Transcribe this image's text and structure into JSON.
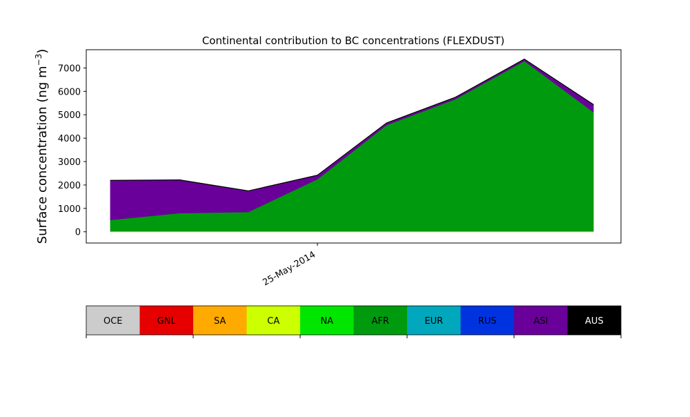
{
  "chart_data": {
    "type": "area",
    "title": "Continental contribution to BC concentrations (FLEXDUST)",
    "xlabel": "",
    "ylabel": "Surface concentration (ng m",
    "ylabel_sup": "−3",
    "ylabel_close": ")",
    "x_tick_label": "25-May-2014",
    "x_tick_index": 3,
    "yticks": [
      0,
      1000,
      2000,
      3000,
      4000,
      5000,
      6000,
      7000
    ],
    "ylim": [
      -480,
      7780
    ],
    "xlim": [
      -0.35,
      7.4
    ],
    "x": [
      0,
      1,
      2,
      3,
      4,
      5,
      6,
      7
    ],
    "stack_order": [
      "OCE",
      "GNL",
      "SA",
      "CA",
      "NA",
      "AFR",
      "EUR",
      "RUS",
      "ASI",
      "AUS"
    ],
    "series": [
      {
        "name": "OCE",
        "color": "#cccccc",
        "values": [
          0,
          0,
          0,
          0,
          0,
          0,
          0,
          0
        ]
      },
      {
        "name": "GNL",
        "color": "#e60000",
        "values": [
          0,
          0,
          0,
          0,
          0,
          0,
          0,
          0
        ]
      },
      {
        "name": "SA",
        "color": "#ffaa00",
        "values": [
          0,
          0,
          0,
          0,
          0,
          0,
          0,
          0
        ]
      },
      {
        "name": "CA",
        "color": "#ccff00",
        "values": [
          20,
          20,
          20,
          20,
          20,
          20,
          20,
          20
        ]
      },
      {
        "name": "NA",
        "color": "#00e600",
        "values": [
          10,
          10,
          10,
          10,
          10,
          10,
          10,
          10
        ]
      },
      {
        "name": "AFR",
        "color": "#009a0e",
        "values": [
          480,
          770,
          820,
          2220,
          4530,
          5640,
          7270,
          5090
        ]
      },
      {
        "name": "EUR",
        "color": "#00a7bd",
        "values": [
          0,
          0,
          0,
          0,
          0,
          0,
          0,
          0
        ]
      },
      {
        "name": "RUS",
        "color": "#0033e0",
        "values": [
          0,
          0,
          0,
          0,
          0,
          0,
          0,
          0
        ]
      },
      {
        "name": "ASI",
        "color": "#690099",
        "values": [
          1680,
          1410,
          890,
          160,
          80,
          70,
          70,
          310
        ]
      },
      {
        "name": "AUS",
        "color": "#000000",
        "values": [
          15,
          15,
          15,
          15,
          15,
          15,
          15,
          15
        ]
      }
    ],
    "legend": {
      "placement": "bottom colorbar",
      "entries": [
        {
          "label": "OCE",
          "color": "#cccccc",
          "text_color": "#000000"
        },
        {
          "label": "GNL",
          "color": "#e60000",
          "text_color": "#000000"
        },
        {
          "label": "SA",
          "color": "#ffaa00",
          "text_color": "#000000"
        },
        {
          "label": "CA",
          "color": "#ccff00",
          "text_color": "#000000"
        },
        {
          "label": "NA",
          "color": "#00e600",
          "text_color": "#000000"
        },
        {
          "label": "AFR",
          "color": "#009a0e",
          "text_color": "#000000"
        },
        {
          "label": "EUR",
          "color": "#00a7bd",
          "text_color": "#000000"
        },
        {
          "label": "RUS",
          "color": "#0033e0",
          "text_color": "#000000"
        },
        {
          "label": "ASI",
          "color": "#690099",
          "text_color": "#000000"
        },
        {
          "label": "AUS",
          "color": "#000000",
          "text_color": "#ffffff"
        }
      ]
    },
    "grid": false
  }
}
